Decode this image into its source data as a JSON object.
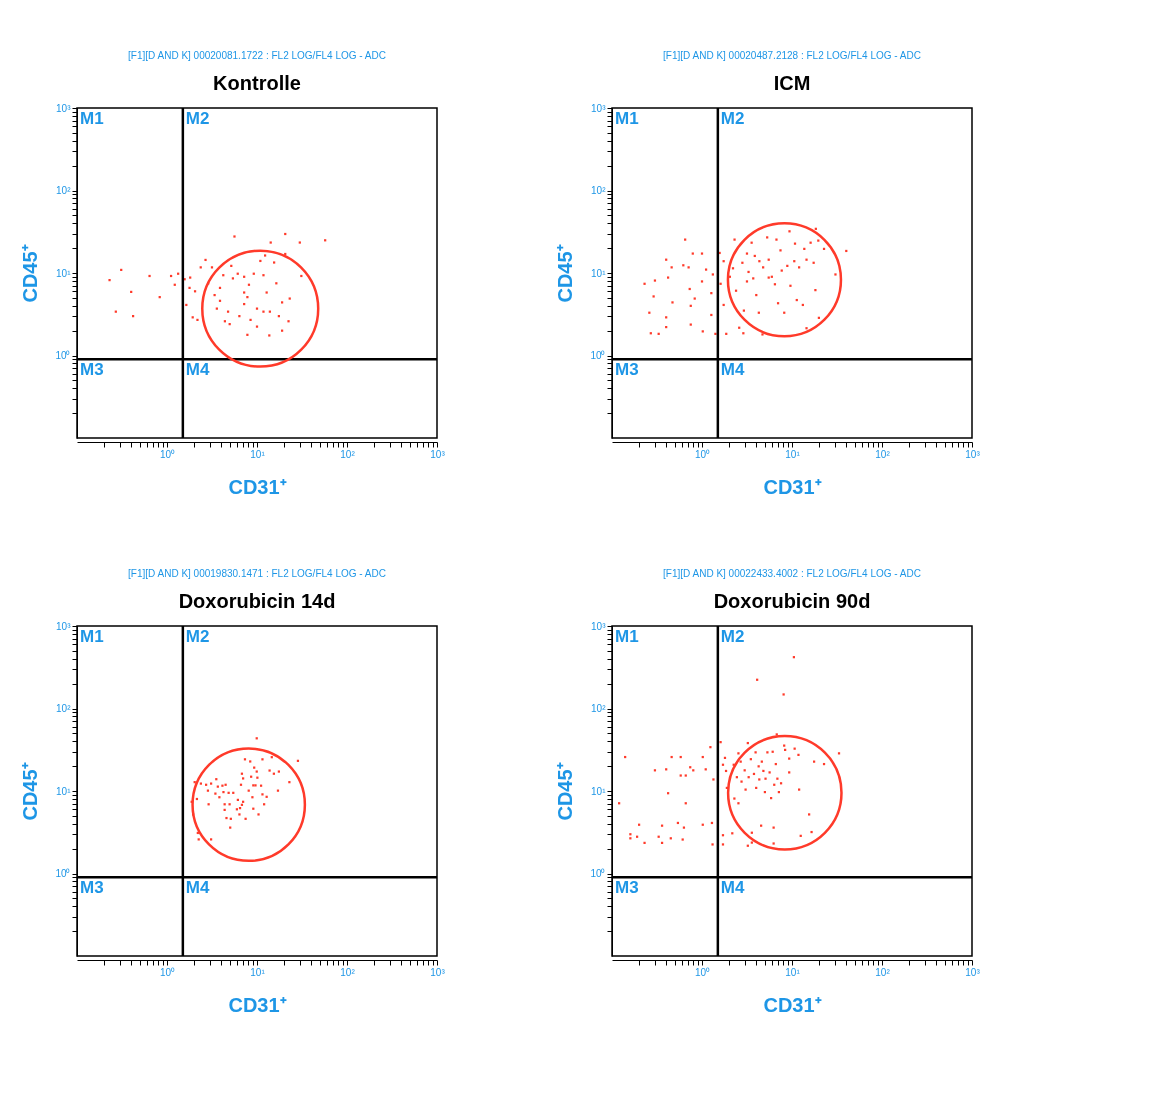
{
  "chart_data": [
    {
      "type": "scatter",
      "title": "Kontrolle",
      "subtitle": "[F1][D AND K] 00020081.1722 : FL2 LOG/FL4 LOG - ADC",
      "xlabel": "CD31⁺",
      "ylabel": "CD45⁺",
      "log": "xy",
      "xlim": [
        0.1,
        1000
      ],
      "ylim": [
        0.1,
        1000
      ],
      "marker": "square",
      "grid": false,
      "xticks": [
        {
          "value": 0.2,
          "label": null
        },
        {
          "value": 0.3,
          "label": null
        },
        {
          "value": 0.4,
          "label": null
        },
        {
          "value": 0.5,
          "label": null
        },
        {
          "value": 0.6,
          "label": null
        },
        {
          "value": 0.7,
          "label": null
        },
        {
          "value": 0.8,
          "label": null
        },
        {
          "value": 0.9,
          "label": null
        },
        {
          "value": 1,
          "label": "10⁰"
        },
        {
          "value": 2,
          "label": null
        },
        {
          "value": 3,
          "label": null
        },
        {
          "value": 4,
          "label": null
        },
        {
          "value": 5,
          "label": null
        },
        {
          "value": 6,
          "label": null
        },
        {
          "value": 7,
          "label": null
        },
        {
          "value": 8,
          "label": null
        },
        {
          "value": 9,
          "label": null
        },
        {
          "value": 10,
          "label": "10¹"
        },
        {
          "value": 20,
          "label": null
        },
        {
          "value": 30,
          "label": null
        },
        {
          "value": 40,
          "label": null
        },
        {
          "value": 50,
          "label": null
        },
        {
          "value": 60,
          "label": null
        },
        {
          "value": 70,
          "label": null
        },
        {
          "value": 80,
          "label": null
        },
        {
          "value": 90,
          "label": null
        },
        {
          "value": 100,
          "label": "10²"
        },
        {
          "value": 200,
          "label": null
        },
        {
          "value": 300,
          "label": null
        },
        {
          "value": 400,
          "label": null
        },
        {
          "value": 500,
          "label": null
        },
        {
          "value": 600,
          "label": null
        },
        {
          "value": 700,
          "label": null
        },
        {
          "value": 800,
          "label": null
        },
        {
          "value": 900,
          "label": null
        },
        {
          "value": 1000,
          "label": "10³"
        }
      ],
      "yticks": [
        {
          "value": 0.2,
          "label": null
        },
        {
          "value": 0.3,
          "label": null
        },
        {
          "value": 0.4,
          "label": null
        },
        {
          "value": 0.5,
          "label": null
        },
        {
          "value": 0.6,
          "label": null
        },
        {
          "value": 0.7,
          "label": null
        },
        {
          "value": 0.8,
          "label": null
        },
        {
          "value": 0.9,
          "label": null
        },
        {
          "value": 1,
          "label": "10⁰"
        },
        {
          "value": 2,
          "label": null
        },
        {
          "value": 3,
          "label": null
        },
        {
          "value": 4,
          "label": null
        },
        {
          "value": 5,
          "label": null
        },
        {
          "value": 6,
          "label": null
        },
        {
          "value": 7,
          "label": null
        },
        {
          "value": 8,
          "label": null
        },
        {
          "value": 9,
          "label": null
        },
        {
          "value": 10,
          "label": "10¹"
        },
        {
          "value": 20,
          "label": null
        },
        {
          "value": 30,
          "label": null
        },
        {
          "value": 40,
          "label": null
        },
        {
          "value": 50,
          "label": null
        },
        {
          "value": 60,
          "label": null
        },
        {
          "value": 70,
          "label": null
        },
        {
          "value": 80,
          "label": null
        },
        {
          "value": 90,
          "label": null
        },
        {
          "value": 100,
          "label": "10²"
        },
        {
          "value": 200,
          "label": null
        },
        {
          "value": 300,
          "label": null
        },
        {
          "value": 400,
          "label": null
        },
        {
          "value": 500,
          "label": null
        },
        {
          "value": 600,
          "label": null
        },
        {
          "value": 700,
          "label": null
        },
        {
          "value": 800,
          "label": null
        },
        {
          "value": 900,
          "label": null
        },
        {
          "value": 1000,
          "label": "10³"
        }
      ],
      "ref_lines": [
        {
          "axis": "x",
          "value": 1.5,
          "color": "#000000"
        },
        {
          "axis": "y",
          "value": 0.9,
          "color": "#000000"
        }
      ],
      "annotations": [
        "M1",
        "M2",
        "M3",
        "M4"
      ],
      "series": [
        {
          "color": "#ff3a2a",
          "x": [
            0.23,
            0.31,
            0.27,
            0.42,
            0.4,
            0.64,
            0.83,
            1.11,
            1.22,
            1.33,
            1.57,
            1.81,
            1.78,
            2.05,
            1.64,
            1.93,
            2.18,
            2.37,
            2.68,
            3.16,
            2.87,
            3.38,
            3.88,
            3.58,
            4.4,
            4.97,
            5.62,
            5.18,
            5.4,
            6.11,
            7.2,
            8.14,
            7.82,
            7.2,
            6.37,
            7.82,
            8.48,
            9.21,
            10.9,
            12.3,
            11.8,
            12.8,
            10.0,
            10.0,
            11.8,
            13.7,
            13.9,
            14.2,
            15.5,
            16.4,
            17.5,
            19.0,
            19.0,
            20.6,
            20.6,
            22.4,
            23.1,
            29.9,
            31.1,
            57.2,
            7.2,
            4.22,
            3.88,
            4.77
          ],
          "values": [
            8.2,
            10.9,
            3.4,
            3.0,
            5.9,
            9.2,
            5.1,
            9.2,
            7.2,
            9.8,
            8.4,
            8.8,
            6.6,
            6.0,
            4.1,
            2.9,
            2.7,
            11.7,
            14.4,
            11.7,
            7.5,
            5.4,
            4.6,
            3.7,
            2.6,
            2.4,
            27.7,
            12.2,
            8.6,
            9.8,
            5.8,
            7.2,
            5.1,
            4.2,
            3.0,
            1.78,
            2.7,
            9.8,
            14.0,
            16.3,
            9.4,
            5.8,
            3.7,
            2.24,
            3.4,
            1.75,
            3.4,
            23.4,
            13.4,
            7.5,
            3.0,
            4.4,
            2.0,
            29.7,
            17.0,
            2.6,
            4.9,
            23.4,
            9.2,
            24.9,
            9.0,
            9.4,
            6.6,
            3.4
          ]
        }
      ]
    },
    {
      "type": "scatter",
      "title": "ICM",
      "subtitle": "[F1][D AND K] 00020487.2128 : FL2 LOG/FL4 LOG - ADC",
      "xlabel": "CD31⁺",
      "ylabel": "CD45⁺",
      "log": "xy",
      "xlim": [
        0.1,
        1000
      ],
      "ylim": [
        0.1,
        1000
      ],
      "marker": "square",
      "grid": false,
      "xticks": [
        {
          "value": 0.2,
          "label": null
        },
        {
          "value": 0.3,
          "label": null
        },
        {
          "value": 0.4,
          "label": null
        },
        {
          "value": 0.5,
          "label": null
        },
        {
          "value": 0.6,
          "label": null
        },
        {
          "value": 0.7,
          "label": null
        },
        {
          "value": 0.8,
          "label": null
        },
        {
          "value": 0.9,
          "label": null
        },
        {
          "value": 1,
          "label": "10⁰"
        },
        {
          "value": 2,
          "label": null
        },
        {
          "value": 3,
          "label": null
        },
        {
          "value": 4,
          "label": null
        },
        {
          "value": 5,
          "label": null
        },
        {
          "value": 6,
          "label": null
        },
        {
          "value": 7,
          "label": null
        },
        {
          "value": 8,
          "label": null
        },
        {
          "value": 9,
          "label": null
        },
        {
          "value": 10,
          "label": "10¹"
        },
        {
          "value": 20,
          "label": null
        },
        {
          "value": 30,
          "label": null
        },
        {
          "value": 40,
          "label": null
        },
        {
          "value": 50,
          "label": null
        },
        {
          "value": 60,
          "label": null
        },
        {
          "value": 70,
          "label": null
        },
        {
          "value": 80,
          "label": null
        },
        {
          "value": 90,
          "label": null
        },
        {
          "value": 100,
          "label": "10²"
        },
        {
          "value": 200,
          "label": null
        },
        {
          "value": 300,
          "label": null
        },
        {
          "value": 400,
          "label": null
        },
        {
          "value": 500,
          "label": null
        },
        {
          "value": 600,
          "label": null
        },
        {
          "value": 700,
          "label": null
        },
        {
          "value": 800,
          "label": null
        },
        {
          "value": 900,
          "label": null
        },
        {
          "value": 1000,
          "label": "10³"
        }
      ],
      "yticks": [
        {
          "value": 0.2,
          "label": null
        },
        {
          "value": 0.3,
          "label": null
        },
        {
          "value": 0.4,
          "label": null
        },
        {
          "value": 0.5,
          "label": null
        },
        {
          "value": 0.6,
          "label": null
        },
        {
          "value": 0.7,
          "label": null
        },
        {
          "value": 0.8,
          "label": null
        },
        {
          "value": 0.9,
          "label": null
        },
        {
          "value": 1,
          "label": "10⁰"
        },
        {
          "value": 2,
          "label": null
        },
        {
          "value": 3,
          "label": null
        },
        {
          "value": 4,
          "label": null
        },
        {
          "value": 5,
          "label": null
        },
        {
          "value": 6,
          "label": null
        },
        {
          "value": 7,
          "label": null
        },
        {
          "value": 8,
          "label": null
        },
        {
          "value": 9,
          "label": null
        },
        {
          "value": 10,
          "label": "10¹"
        },
        {
          "value": 20,
          "label": null
        },
        {
          "value": 30,
          "label": null
        },
        {
          "value": 40,
          "label": null
        },
        {
          "value": 50,
          "label": null
        },
        {
          "value": 60,
          "label": null
        },
        {
          "value": 70,
          "label": null
        },
        {
          "value": 80,
          "label": null
        },
        {
          "value": 90,
          "label": null
        },
        {
          "value": 100,
          "label": "10²"
        },
        {
          "value": 200,
          "label": null
        },
        {
          "value": 300,
          "label": null
        },
        {
          "value": 400,
          "label": null
        },
        {
          "value": 500,
          "label": null
        },
        {
          "value": 600,
          "label": null
        },
        {
          "value": 700,
          "label": null
        },
        {
          "value": 800,
          "label": null
        },
        {
          "value": 900,
          "label": null
        },
        {
          "value": 1000,
          "label": "10³"
        }
      ],
      "ref_lines": [
        {
          "axis": "x",
          "value": 1.5,
          "color": "#000000"
        },
        {
          "axis": "y",
          "value": 0.9,
          "color": "#000000"
        }
      ],
      "annotations": [
        "M1",
        "M2",
        "M3",
        "M4"
      ],
      "series": [
        {
          "color": "#ff3a2a",
          "x": [
            0.23,
            0.29,
            0.3,
            0.26,
            0.27,
            0.33,
            0.4,
            0.4,
            0.42,
            0.46,
            0.47,
            0.4,
            0.65,
            0.62,
            0.71,
            0.73,
            0.75,
            0.75,
            0.79,
            0.83,
            1.0,
            1.0,
            1.02,
            1.11,
            1.27,
            1.27,
            1.32,
            1.41,
            1.61,
            1.57,
            1.74,
            1.74,
            1.86,
            2.04,
            2.3,
            2.21,
            2.39,
            2.59,
            2.92,
            2.88,
            2.81,
            3.16,
            3.29,
            3.56,
            3.86,
            3.71,
            4.01,
            4.28,
            4.7,
            4.78,
            5.3,
            5.51,
            5.97,
            6.46,
            6.72,
            7.0,
            7.45,
            7.69,
            8.2,
            8.87,
            9.61,
            9.38,
            10.6,
            10.8,
            11.3,
            12.0,
            13.2,
            13.7,
            14.5,
            14.5,
            16.1,
            17.4,
            18.4,
            18.2,
            19.6,
            19.9,
            22.7,
            30.4,
            40.1,
            5.51,
            3.16,
            4.34
          ],
          "values": [
            7.4,
            5.2,
            8.1,
            3.3,
            1.86,
            1.83,
            2.9,
            14.5,
            8.8,
            11.7,
            4.4,
            2.21,
            25.4,
            12.4,
            11.7,
            6.4,
            4.0,
            2.37,
            17.2,
            4.9,
            17.2,
            7.9,
            1.96,
            11.0,
            3.1,
            5.7,
            9.6,
            1.83,
            7.4,
            17.5,
            13.9,
            4.1,
            1.83,
            9.0,
            25.4,
            11.4,
            6.1,
            2.17,
            3.5,
            1.86,
            13.3,
            17.2,
            10.3,
            23.3,
            16.1,
            8.6,
            5.4,
            3.3,
            1.8,
            11.7,
            27.0,
            14.5,
            9.0,
            7.3,
            25.4,
            4.3,
            18.8,
            10.7,
            3.3,
            12.2,
            7.0,
            32.0,
            13.9,
            22.7,
            4.7,
            11.7,
            4.1,
            19.6,
            14.5,
            2.14,
            23.3,
            13.3,
            34.3,
            6.2,
            24.7,
            2.86,
            19.6,
            9.6,
            18.5,
            8.8,
            7.9,
            13.9
          ]
        }
      ]
    },
    {
      "type": "scatter",
      "title": "Doxorubicin 14d",
      "subtitle": "[F1][D AND K] 00019830.1471 : FL2 LOG/FL4 LOG - ADC",
      "xlabel": "CD31⁺",
      "ylabel": "CD45⁺",
      "log": "xy",
      "xlim": [
        0.1,
        1000
      ],
      "ylim": [
        0.1,
        1000
      ],
      "marker": "square",
      "grid": false,
      "xticks": [
        {
          "value": 0.2,
          "label": null
        },
        {
          "value": 0.3,
          "label": null
        },
        {
          "value": 0.4,
          "label": null
        },
        {
          "value": 0.5,
          "label": null
        },
        {
          "value": 0.6,
          "label": null
        },
        {
          "value": 0.7,
          "label": null
        },
        {
          "value": 0.8,
          "label": null
        },
        {
          "value": 0.9,
          "label": null
        },
        {
          "value": 1,
          "label": "10⁰"
        },
        {
          "value": 2,
          "label": null
        },
        {
          "value": 3,
          "label": null
        },
        {
          "value": 4,
          "label": null
        },
        {
          "value": 5,
          "label": null
        },
        {
          "value": 6,
          "label": null
        },
        {
          "value": 7,
          "label": null
        },
        {
          "value": 8,
          "label": null
        },
        {
          "value": 9,
          "label": null
        },
        {
          "value": 10,
          "label": "10¹"
        },
        {
          "value": 20,
          "label": null
        },
        {
          "value": 30,
          "label": null
        },
        {
          "value": 40,
          "label": null
        },
        {
          "value": 50,
          "label": null
        },
        {
          "value": 60,
          "label": null
        },
        {
          "value": 70,
          "label": null
        },
        {
          "value": 80,
          "label": null
        },
        {
          "value": 90,
          "label": null
        },
        {
          "value": 100,
          "label": "10²"
        },
        {
          "value": 200,
          "label": null
        },
        {
          "value": 300,
          "label": null
        },
        {
          "value": 400,
          "label": null
        },
        {
          "value": 500,
          "label": null
        },
        {
          "value": 600,
          "label": null
        },
        {
          "value": 700,
          "label": null
        },
        {
          "value": 800,
          "label": null
        },
        {
          "value": 900,
          "label": null
        },
        {
          "value": 1000,
          "label": "10³"
        }
      ],
      "yticks": [
        {
          "value": 0.2,
          "label": null
        },
        {
          "value": 0.3,
          "label": null
        },
        {
          "value": 0.4,
          "label": null
        },
        {
          "value": 0.5,
          "label": null
        },
        {
          "value": 0.6,
          "label": null
        },
        {
          "value": 0.7,
          "label": null
        },
        {
          "value": 0.8,
          "label": null
        },
        {
          "value": 0.9,
          "label": null
        },
        {
          "value": 1,
          "label": "10⁰"
        },
        {
          "value": 2,
          "label": null
        },
        {
          "value": 3,
          "label": null
        },
        {
          "value": 4,
          "label": null
        },
        {
          "value": 5,
          "label": null
        },
        {
          "value": 6,
          "label": null
        },
        {
          "value": 7,
          "label": null
        },
        {
          "value": 8,
          "label": null
        },
        {
          "value": 9,
          "label": null
        },
        {
          "value": 10,
          "label": "10¹"
        },
        {
          "value": 20,
          "label": null
        },
        {
          "value": 30,
          "label": null
        },
        {
          "value": 40,
          "label": null
        },
        {
          "value": 50,
          "label": null
        },
        {
          "value": 60,
          "label": null
        },
        {
          "value": 70,
          "label": null
        },
        {
          "value": 80,
          "label": null
        },
        {
          "value": 90,
          "label": null
        },
        {
          "value": 100,
          "label": "10²"
        },
        {
          "value": 200,
          "label": null
        },
        {
          "value": 300,
          "label": null
        },
        {
          "value": 400,
          "label": null
        },
        {
          "value": 500,
          "label": null
        },
        {
          "value": 600,
          "label": null
        },
        {
          "value": 700,
          "label": null
        },
        {
          "value": 800,
          "label": null
        },
        {
          "value": 900,
          "label": null
        },
        {
          "value": 1000,
          "label": "10³"
        }
      ],
      "ref_lines": [
        {
          "axis": "x",
          "value": 1.5,
          "color": "#000000"
        },
        {
          "axis": "y",
          "value": 0.9,
          "color": "#000000"
        }
      ],
      "annotations": [
        "M1",
        "M2",
        "M3",
        "M4"
      ],
      "series": [
        {
          "color": "#ff3a2a",
          "x": [
            1.88,
            1.95,
            2.03,
            2.15,
            2.2,
            2.25,
            2.38,
            2.72,
            2.85,
            2.9,
            3.09,
            3.09,
            3.45,
            3.53,
            3.67,
            3.82,
            4.13,
            4.24,
            4.37,
            4.48,
            4.37,
            4.58,
            4.84,
            4.96,
            5.12,
            5.04,
            5.45,
            5.98,
            6.13,
            6.38,
            6.48,
            6.64,
            6.8,
            7.01,
            6.8,
            7.01,
            7.35,
            7.47,
            8.09,
            8.41,
            8.61,
            8.89,
            9.1,
            9.1,
            9.31,
            9.62,
            9.93,
            9.93,
            10.1,
            10.4,
            11.1,
            11.5,
            11.5,
            12.0,
            12.8,
            13.8,
            14.6,
            15.4,
            17.5,
            17.1,
            22.9,
            28.5
          ],
          "values": [
            7.4,
            5.2,
            12.8,
            8.0,
            3.1,
            2.59,
            12.3,
            11.9,
            10.1,
            6.9,
            12.3,
            2.59,
            9.3,
            13.9,
            11.3,
            8.4,
            11.6,
            9.7,
            6.9,
            11.9,
            5.9,
            4.7,
            9.5,
            6.9,
            4.6,
            3.6,
            9.5,
            6.0,
            7.8,
            5.2,
            6.2,
            11.9,
            16.2,
            14.2,
            6.8,
            7.4,
            24.2,
            4.6,
            10.1,
            22.8,
            14.9,
            8.4,
            11.7,
            6.1,
            19.2,
            11.7,
            43.5,
            17.2,
            14.5,
            5.2,
            11.6,
            24.2,
            9.1,
            6.9,
            8.5,
            17.7,
            25.7,
            16.2,
            17.2,
            10.1,
            12.8,
            23.2
          ]
        }
      ]
    },
    {
      "type": "scatter",
      "title": "Doxorubicin 90d",
      "subtitle": "[F1][D AND K] 00022433.4002 : FL2 LOG/FL4 LOG - ADC",
      "xlabel": "CD31⁺",
      "ylabel": "CD45⁺",
      "log": "xy",
      "xlim": [
        0.1,
        1000
      ],
      "ylim": [
        0.1,
        1000
      ],
      "marker": "square",
      "grid": false,
      "xticks": [
        {
          "value": 0.2,
          "label": null
        },
        {
          "value": 0.3,
          "label": null
        },
        {
          "value": 0.4,
          "label": null
        },
        {
          "value": 0.5,
          "label": null
        },
        {
          "value": 0.6,
          "label": null
        },
        {
          "value": 0.7,
          "label": null
        },
        {
          "value": 0.8,
          "label": null
        },
        {
          "value": 0.9,
          "label": null
        },
        {
          "value": 1,
          "label": "10⁰"
        },
        {
          "value": 2,
          "label": null
        },
        {
          "value": 3,
          "label": null
        },
        {
          "value": 4,
          "label": null
        },
        {
          "value": 5,
          "label": null
        },
        {
          "value": 6,
          "label": null
        },
        {
          "value": 7,
          "label": null
        },
        {
          "value": 8,
          "label": null
        },
        {
          "value": 9,
          "label": null
        },
        {
          "value": 10,
          "label": "10¹"
        },
        {
          "value": 20,
          "label": null
        },
        {
          "value": 30,
          "label": null
        },
        {
          "value": 40,
          "label": null
        },
        {
          "value": 50,
          "label": null
        },
        {
          "value": 60,
          "label": null
        },
        {
          "value": 70,
          "label": null
        },
        {
          "value": 80,
          "label": null
        },
        {
          "value": 90,
          "label": null
        },
        {
          "value": 100,
          "label": "10²"
        },
        {
          "value": 200,
          "label": null
        },
        {
          "value": 300,
          "label": null
        },
        {
          "value": 400,
          "label": null
        },
        {
          "value": 500,
          "label": null
        },
        {
          "value": 600,
          "label": null
        },
        {
          "value": 700,
          "label": null
        },
        {
          "value": 800,
          "label": null
        },
        {
          "value": 900,
          "label": null
        },
        {
          "value": 1000,
          "label": "10³"
        }
      ],
      "yticks": [
        {
          "value": 0.2,
          "label": null
        },
        {
          "value": 0.3,
          "label": null
        },
        {
          "value": 0.4,
          "label": null
        },
        {
          "value": 0.5,
          "label": null
        },
        {
          "value": 0.6,
          "label": null
        },
        {
          "value": 0.7,
          "label": null
        },
        {
          "value": 0.8,
          "label": null
        },
        {
          "value": 0.9,
          "label": null
        },
        {
          "value": 1,
          "label": "10⁰"
        },
        {
          "value": 2,
          "label": null
        },
        {
          "value": 3,
          "label": null
        },
        {
          "value": 4,
          "label": null
        },
        {
          "value": 5,
          "label": null
        },
        {
          "value": 6,
          "label": null
        },
        {
          "value": 7,
          "label": null
        },
        {
          "value": 8,
          "label": null
        },
        {
          "value": 9,
          "label": null
        },
        {
          "value": 10,
          "label": "10¹"
        },
        {
          "value": 20,
          "label": null
        },
        {
          "value": 30,
          "label": null
        },
        {
          "value": 40,
          "label": null
        },
        {
          "value": 50,
          "label": null
        },
        {
          "value": 60,
          "label": null
        },
        {
          "value": 70,
          "label": null
        },
        {
          "value": 80,
          "label": null
        },
        {
          "value": 90,
          "label": null
        },
        {
          "value": 100,
          "label": "10²"
        },
        {
          "value": 200,
          "label": null
        },
        {
          "value": 300,
          "label": null
        },
        {
          "value": 400,
          "label": null
        },
        {
          "value": 500,
          "label": null
        },
        {
          "value": 600,
          "label": null
        },
        {
          "value": 700,
          "label": null
        },
        {
          "value": 800,
          "label": null
        },
        {
          "value": 900,
          "label": null
        },
        {
          "value": 1000,
          "label": "10³"
        }
      ],
      "ref_lines": [
        {
          "axis": "x",
          "value": 1.5,
          "color": "#000000"
        },
        {
          "axis": "y",
          "value": 0.9,
          "color": "#000000"
        }
      ],
      "annotations": [
        "M1",
        "M2",
        "M3",
        "M4"
      ],
      "series": [
        {
          "color": "#ff3a2a",
          "x": [
            0.12,
            0.14,
            0.16,
            0.16,
            0.19,
            0.2,
            0.23,
            0.3,
            0.33,
            0.36,
            0.36,
            0.4,
            0.42,
            0.45,
            0.46,
            0.54,
            0.58,
            0.58,
            0.61,
            0.63,
            0.66,
            0.66,
            0.74,
            0.8,
            1.02,
            1.02,
            1.1,
            1.24,
            1.29,
            1.31,
            1.34,
            1.61,
            1.71,
            1.71,
            1.71,
            1.8,
            1.85,
            1.89,
            2.17,
            2.25,
            2.29,
            2.44,
            2.54,
            2.54,
            2.69,
            2.75,
            2.98,
            3.05,
            3.23,
            3.23,
            3.3,
            3.49,
            3.58,
            3.58,
            3.78,
            3.94,
            4.0,
            4.1,
            4.26,
            4.33,
            4.54,
            4.62,
            4.81,
            5.0,
            5.08,
            5.33,
            5.64,
            5.86,
            6.1,
            6.25,
            6.35,
            6.25,
            6.61,
            6.77,
            6.88,
            7.15,
            7.56,
            8.07,
            8.19,
            8.39,
            9.31,
            9.31,
            10.5,
            10.7,
            11.8,
            12.0,
            12.5,
            15.5,
            16.5,
            17.6,
            22.7,
            33.3
          ],
          "values": [
            7.1,
            25.8,
            2.99,
            2.67,
            2.79,
            3.9,
            2.35,
            17.8,
            2.79,
            3.8,
            2.35,
            18.3,
            9.4,
            2.67,
            25.8,
            4.1,
            25.8,
            15.4,
            2.58,
            3.6,
            7.1,
            15.4,
            19.4,
            17.8,
            25.8,
            3.9,
            18.3,
            34.0,
            4.1,
            2.25,
            13.8,
            39.1,
            2.91,
            2.25,
            20.8,
            25.2,
            17.5,
            10.9,
            3.07,
            20.8,
            8.1,
            14.7,
            28.6,
            7.1,
            22.7,
            13.0,
            17.8,
            10.4,
            2.17,
            38.1,
            14.7,
            24.3,
            3.12,
            2.37,
            16.1,
            29.4,
            10.9,
            223,
            19.9,
            13.8,
            3.8,
            22.7,
            17.5,
            9.7,
            14.1,
            29.4,
            16.8,
            8.2,
            29.9,
            3.6,
            11.9,
            2.31,
            21.2,
            48.5,
            14.1,
            9.7,
            12.4,
            148,
            35.5,
            31.5,
            24.7,
            16.8,
            419,
            32.6,
            27.4,
            10.4,
            2.86,
            5.2,
            3.18,
            22.7,
            21.2,
            28.6
          ]
        }
      ]
    }
  ]
}
